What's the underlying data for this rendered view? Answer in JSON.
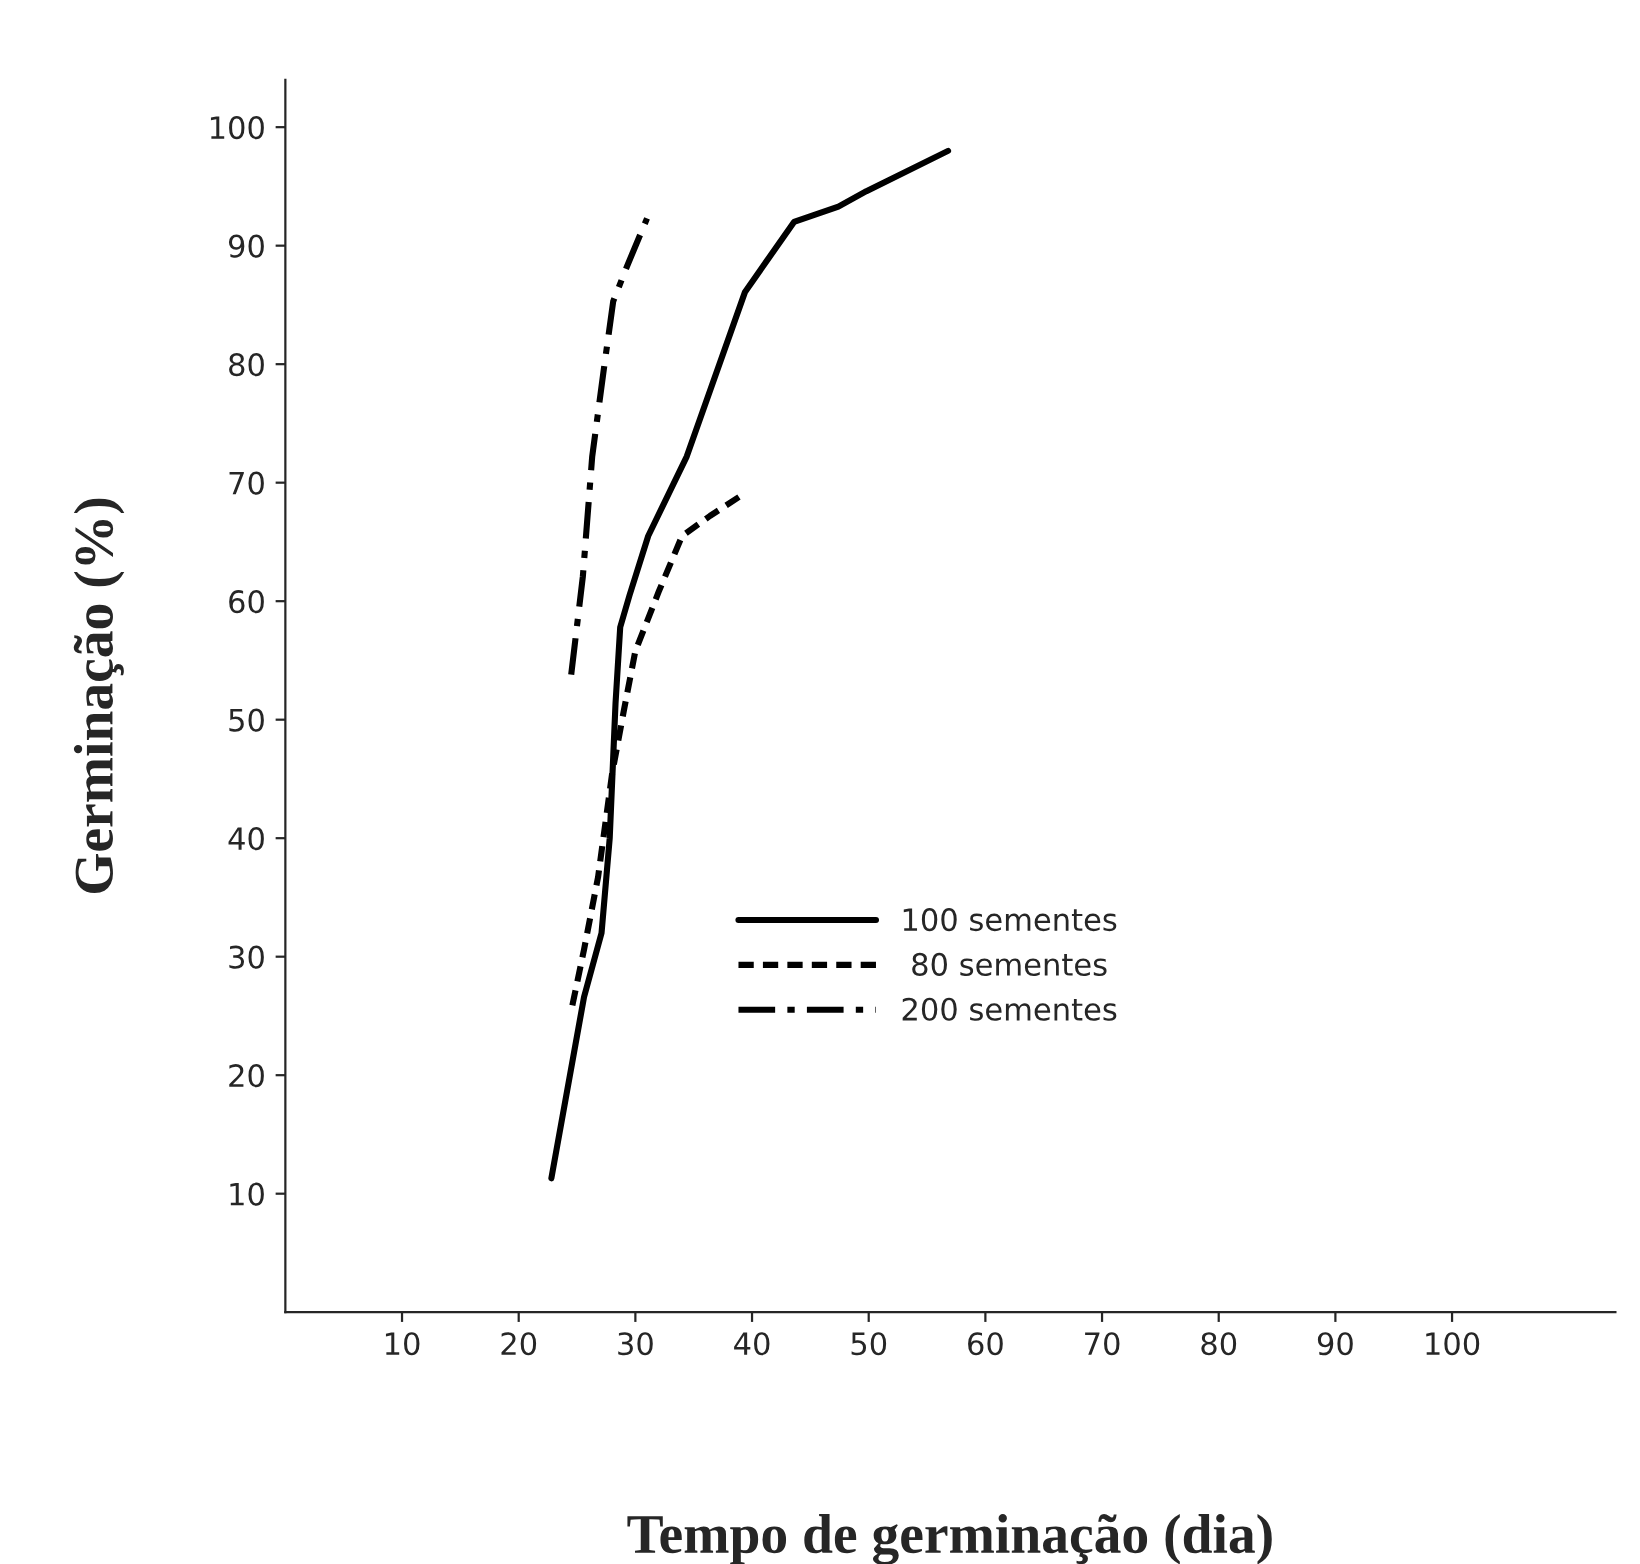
{
  "chart_data": {
    "type": "line",
    "xlabel": "Tempo de germinação (dia)",
    "ylabel": "Germinação (%)",
    "xlim": [
      0,
      114
    ],
    "ylim": [
      0,
      104
    ],
    "xticks": [
      10,
      20,
      30,
      40,
      50,
      60,
      70,
      80,
      90,
      100
    ],
    "yticks": [
      10,
      20,
      30,
      40,
      50,
      60,
      70,
      80,
      90,
      100
    ],
    "grid": false,
    "legend": "right",
    "marker": "none",
    "series": [
      {
        "name": "100 sementes",
        "color": "#000000",
        "line_style": "solid",
        "x": [
          22.8,
          25.6,
          27.1,
          27.8,
          28.3,
          28.7,
          29.5,
          31.1,
          34.4,
          39.4,
          43.6,
          47.4,
          49.8,
          56.8
        ],
        "values": [
          11.3,
          26.6,
          32,
          40,
          51.4,
          57.8,
          60.5,
          65.5,
          72.2,
          86.1,
          92,
          93.3,
          94.6,
          98
        ]
      },
      {
        "name": " 80 sementes",
        "color": "#000000",
        "line_style": "dashed",
        "x": [
          24.6,
          25.6,
          26.8,
          28.0,
          29.0,
          30.0,
          32.0,
          34.0,
          36.4,
          38.9
        ],
        "values": [
          25.9,
          30.6,
          36.7,
          45.4,
          50.7,
          55.8,
          60.8,
          65.5,
          67.2,
          68.8
        ]
      },
      {
        "name": "200 sementes",
        "color": "#000000",
        "line_style": "dashdot",
        "x": [
          24.5,
          25.5,
          26.3,
          27.3,
          28.1,
          29.3,
          31.0
        ],
        "values": [
          53.8,
          62.1,
          72.2,
          79.6,
          85.3,
          88.3,
          92.3
        ]
      }
    ]
  }
}
